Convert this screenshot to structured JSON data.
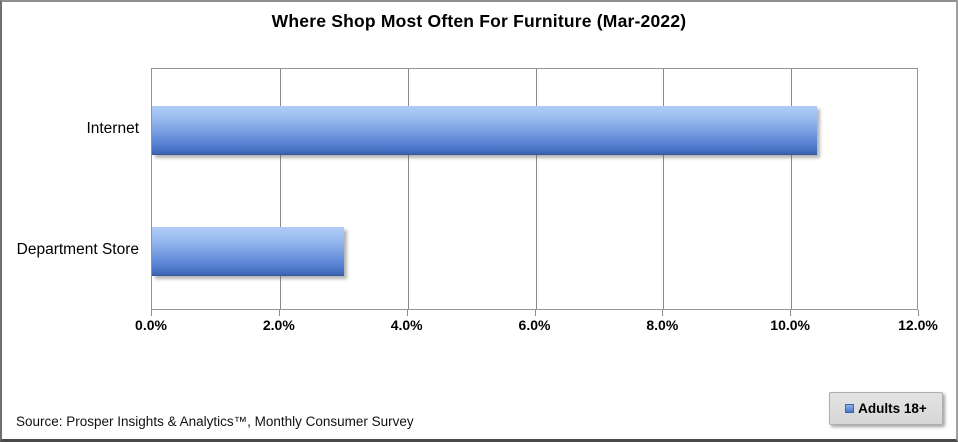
{
  "header": {
    "title": "Where Shop Most Often For Furniture (Mar-2022)"
  },
  "footer": {
    "source": "Source: Prosper Insights & Analytics™, Monthly Consumer Survey"
  },
  "legend": {
    "marker_icon": "blue-square-series-marker",
    "label": "Adults 18+"
  },
  "colors": {
    "bar_gradient_top": "#b0ccf5",
    "bar_gradient_bottom": "#3d63af",
    "gridline": "#8c8c8c",
    "plot_border": "#969696",
    "legend_background": "#d9d9d9",
    "text": "#000000"
  },
  "chart_data": {
    "type": "bar",
    "orientation": "horizontal",
    "title": "Where Shop Most Often For Furniture (Mar-2022)",
    "categories": [
      "Internet",
      "Department Store"
    ],
    "series": [
      {
        "name": "Adults 18+",
        "values": [
          10.4,
          3.0
        ]
      }
    ],
    "xlabel": "",
    "ylabel": "",
    "xlim": [
      0,
      12
    ],
    "x_tick_step": 2,
    "x_tick_labels": [
      "0.0%",
      "2.0%",
      "4.0%",
      "6.0%",
      "8.0%",
      "10.0%",
      "12.0%"
    ],
    "grid": true,
    "legend_position": "bottom-right",
    "source": "Source: Prosper Insights & Analytics™, Monthly Consumer Survey"
  }
}
